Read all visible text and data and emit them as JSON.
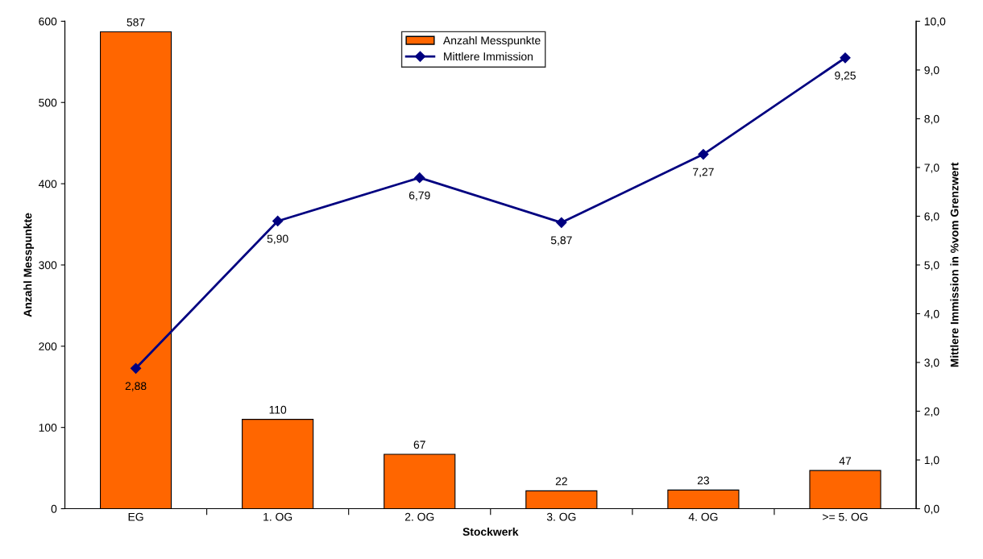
{
  "chart_data": {
    "type": "bar",
    "xlabel": "Stockwerk",
    "ylabel": "Anzahl Messpunkte",
    "y2label": "Mittlere Immission in %vom Grenzwert",
    "categories": [
      "EG",
      "1. OG",
      "2. OG",
      "3. OG",
      "4. OG",
      ">= 5. OG"
    ],
    "series": [
      {
        "name": "Anzahl Messpunkte",
        "color": "#ff6600",
        "values": [
          587,
          110,
          67,
          22,
          23,
          47
        ],
        "value_labels": [
          "587",
          "110",
          "67",
          "22",
          "23",
          "47"
        ]
      },
      {
        "name": "Mittlere Immission",
        "type": "line",
        "axis": "y2",
        "color": "#000080",
        "marker": "diamond",
        "line_style": "solid",
        "values": [
          2.88,
          5.9,
          6.79,
          5.87,
          7.27,
          9.25
        ],
        "value_labels": [
          "2,88",
          "5,90",
          "6,79",
          "5,87",
          "7,27",
          "9,25"
        ]
      }
    ],
    "ylim": [
      0,
      600
    ],
    "yticks": [
      0,
      100,
      200,
      300,
      400,
      500,
      600
    ],
    "y2lim": [
      0,
      10
    ],
    "y2ticks": [
      {
        "value": 0,
        "label": "0,0"
      },
      {
        "value": 1,
        "label": "1,0"
      },
      {
        "value": 2,
        "label": "2,0"
      },
      {
        "value": 3,
        "label": "3,0"
      },
      {
        "value": 4,
        "label": "4,0"
      },
      {
        "value": 5,
        "label": "5,0"
      },
      {
        "value": 6,
        "label": "6,0"
      },
      {
        "value": 7,
        "label": "7,0"
      },
      {
        "value": 8,
        "label": "8,0"
      },
      {
        "value": 9,
        "label": "9,0"
      },
      {
        "value": 10,
        "label": "10,0"
      }
    ],
    "grid": false,
    "legend": "top"
  }
}
